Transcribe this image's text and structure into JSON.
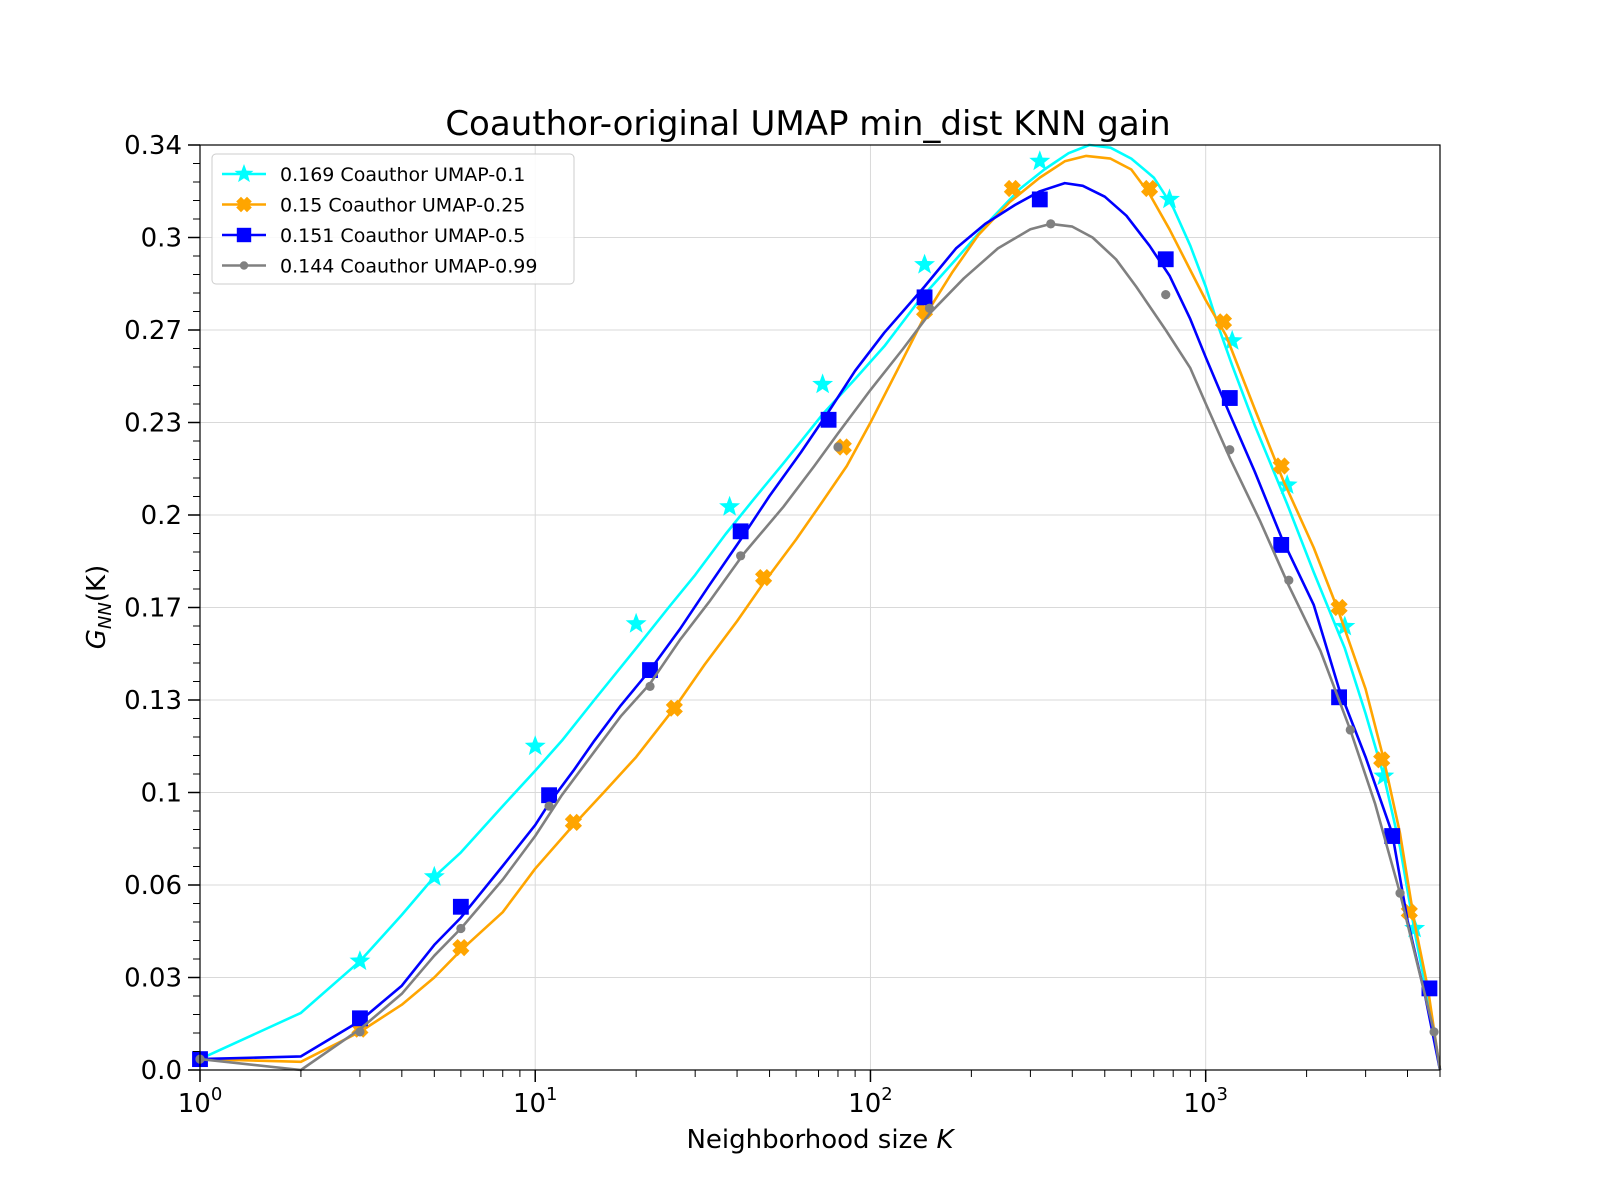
{
  "chart_data": {
    "type": "line",
    "title": "Coauthor-original UMAP min_dist KNN gain",
    "xlabel_text": "Neighborhood size ",
    "xlabel_var": "K",
    "ylabel": {
      "main": "G",
      "sub": "NN",
      "rest": "(K)"
    },
    "xscale": "log",
    "xlim": [
      1,
      5000
    ],
    "ylim": [
      0.0,
      0.34
    ],
    "x_ticks": [
      {
        "value": 1,
        "base": "10",
        "exp": "0"
      },
      {
        "value": 10,
        "base": "10",
        "exp": "1"
      },
      {
        "value": 100,
        "base": "10",
        "exp": "2"
      },
      {
        "value": 1000,
        "base": "10",
        "exp": "3"
      }
    ],
    "y_ticks": [
      {
        "value": 0.0,
        "label": "0.0"
      },
      {
        "value": 0.034,
        "label": "0.03"
      },
      {
        "value": 0.068,
        "label": "0.06"
      },
      {
        "value": 0.102,
        "label": "0.1"
      },
      {
        "value": 0.136,
        "label": "0.13"
      },
      {
        "value": 0.17,
        "label": "0.17"
      },
      {
        "value": 0.204,
        "label": "0.2"
      },
      {
        "value": 0.238,
        "label": "0.23"
      },
      {
        "value": 0.272,
        "label": "0.27"
      },
      {
        "value": 0.306,
        "label": "0.3"
      },
      {
        "value": 0.34,
        "label": "0.34"
      }
    ],
    "grid": true,
    "legend_position": "top-left",
    "series": [
      {
        "name": "0.169 Coauthor UMAP-0.1",
        "color": "#00ffff",
        "marker": "star",
        "line": [
          [
            1,
            0.004
          ],
          [
            2,
            0.021
          ],
          [
            3,
            0.04
          ],
          [
            4,
            0.057
          ],
          [
            5,
            0.071
          ],
          [
            6,
            0.08
          ],
          [
            8,
            0.097
          ],
          [
            10,
            0.11
          ],
          [
            12,
            0.121
          ],
          [
            15,
            0.136
          ],
          [
            20,
            0.155
          ],
          [
            25,
            0.17
          ],
          [
            30,
            0.182
          ],
          [
            37,
            0.197
          ],
          [
            45,
            0.21
          ],
          [
            55,
            0.223
          ],
          [
            72,
            0.241
          ],
          [
            90,
            0.254
          ],
          [
            110,
            0.266
          ],
          [
            140,
            0.283
          ],
          [
            180,
            0.298
          ],
          [
            230,
            0.313
          ],
          [
            280,
            0.324
          ],
          [
            330,
            0.331
          ],
          [
            390,
            0.337
          ],
          [
            450,
            0.34
          ],
          [
            520,
            0.339
          ],
          [
            600,
            0.335
          ],
          [
            700,
            0.328
          ],
          [
            800,
            0.317
          ],
          [
            900,
            0.303
          ],
          [
            1000,
            0.288
          ],
          [
            1100,
            0.272
          ],
          [
            1200,
            0.259
          ],
          [
            1400,
            0.237
          ],
          [
            1750,
            0.208
          ],
          [
            2100,
            0.183
          ],
          [
            2600,
            0.155
          ],
          [
            3000,
            0.131
          ],
          [
            3400,
            0.108
          ],
          [
            3800,
            0.082
          ],
          [
            4200,
            0.051
          ],
          [
            4600,
            0.026
          ],
          [
            5000,
            0.0
          ]
        ],
        "markers": [
          [
            3,
            0.04
          ],
          [
            5,
            0.071
          ],
          [
            10,
            0.119
          ],
          [
            20,
            0.164
          ],
          [
            38,
            0.207
          ],
          [
            72,
            0.252
          ],
          [
            145,
            0.296
          ],
          [
            320,
            0.334
          ],
          [
            780,
            0.32
          ],
          [
            1200,
            0.268
          ],
          [
            1750,
            0.215
          ],
          [
            2600,
            0.163
          ],
          [
            3400,
            0.108
          ],
          [
            4200,
            0.052
          ]
        ]
      },
      {
        "name": "0.15 Coauthor UMAP-0.25",
        "color": "#ffa500",
        "marker": "x",
        "line": [
          [
            1,
            0.004
          ],
          [
            2,
            0.003
          ],
          [
            3,
            0.014
          ],
          [
            4,
            0.024
          ],
          [
            5,
            0.034
          ],
          [
            6,
            0.044
          ],
          [
            8,
            0.058
          ],
          [
            10,
            0.074
          ],
          [
            13,
            0.09
          ],
          [
            16,
            0.102
          ],
          [
            20,
            0.115
          ],
          [
            26,
            0.133
          ],
          [
            32,
            0.149
          ],
          [
            40,
            0.165
          ],
          [
            48,
            0.179
          ],
          [
            60,
            0.195
          ],
          [
            72,
            0.209
          ],
          [
            85,
            0.222
          ],
          [
            100,
            0.238
          ],
          [
            120,
            0.257
          ],
          [
            145,
            0.277
          ],
          [
            175,
            0.293
          ],
          [
            210,
            0.307
          ],
          [
            260,
            0.319
          ],
          [
            320,
            0.328
          ],
          [
            380,
            0.334
          ],
          [
            440,
            0.336
          ],
          [
            520,
            0.335
          ],
          [
            600,
            0.331
          ],
          [
            680,
            0.322
          ],
          [
            780,
            0.309
          ],
          [
            900,
            0.294
          ],
          [
            1000,
            0.283
          ],
          [
            1150,
            0.27
          ],
          [
            1400,
            0.243
          ],
          [
            1700,
            0.217
          ],
          [
            2100,
            0.192
          ],
          [
            2500,
            0.168
          ],
          [
            3000,
            0.14
          ],
          [
            3400,
            0.114
          ],
          [
            3800,
            0.087
          ],
          [
            4200,
            0.054
          ],
          [
            4600,
            0.03
          ],
          [
            5000,
            0.0
          ]
        ],
        "markers": [
          [
            3,
            0.015
          ],
          [
            6,
            0.045
          ],
          [
            13,
            0.091
          ],
          [
            26,
            0.133
          ],
          [
            48,
            0.181
          ],
          [
            83,
            0.229
          ],
          [
            145,
            0.279
          ],
          [
            265,
            0.324
          ],
          [
            680,
            0.324
          ],
          [
            1130,
            0.275
          ],
          [
            1680,
            0.222
          ],
          [
            2500,
            0.17
          ],
          [
            3350,
            0.114
          ],
          [
            4050,
            0.058
          ]
        ]
      },
      {
        "name": "0.151 Coauthor UMAP-0.5",
        "color": "#0000ff",
        "marker": "square",
        "line": [
          [
            1,
            0.004
          ],
          [
            2,
            0.005
          ],
          [
            3,
            0.018
          ],
          [
            4,
            0.031
          ],
          [
            5,
            0.046
          ],
          [
            6,
            0.056
          ],
          [
            8,
            0.075
          ],
          [
            10,
            0.09
          ],
          [
            11,
            0.098
          ],
          [
            13,
            0.11
          ],
          [
            15,
            0.121
          ],
          [
            18,
            0.134
          ],
          [
            22,
            0.147
          ],
          [
            27,
            0.162
          ],
          [
            33,
            0.178
          ],
          [
            41,
            0.195
          ],
          [
            50,
            0.211
          ],
          [
            62,
            0.227
          ],
          [
            75,
            0.242
          ],
          [
            90,
            0.257
          ],
          [
            110,
            0.271
          ],
          [
            145,
            0.288
          ],
          [
            180,
            0.302
          ],
          [
            220,
            0.311
          ],
          [
            270,
            0.318
          ],
          [
            320,
            0.323
          ],
          [
            380,
            0.326
          ],
          [
            430,
            0.325
          ],
          [
            500,
            0.321
          ],
          [
            580,
            0.314
          ],
          [
            680,
            0.303
          ],
          [
            780,
            0.292
          ],
          [
            900,
            0.276
          ],
          [
            1000,
            0.262
          ],
          [
            1180,
            0.241
          ],
          [
            1400,
            0.22
          ],
          [
            1680,
            0.196
          ],
          [
            2100,
            0.171
          ],
          [
            2500,
            0.14
          ],
          [
            3000,
            0.115
          ],
          [
            3600,
            0.087
          ],
          [
            4000,
            0.055
          ],
          [
            4500,
            0.028
          ],
          [
            5000,
            0.0
          ]
        ],
        "markers": [
          [
            1,
            0.004
          ],
          [
            3,
            0.019
          ],
          [
            6,
            0.06
          ],
          [
            11,
            0.101
          ],
          [
            22,
            0.147
          ],
          [
            41,
            0.198
          ],
          [
            75,
            0.239
          ],
          [
            145,
            0.284
          ],
          [
            320,
            0.32
          ],
          [
            760,
            0.298
          ],
          [
            1180,
            0.247
          ],
          [
            1680,
            0.193
          ],
          [
            2500,
            0.137
          ],
          [
            3600,
            0.086
          ],
          [
            4650,
            0.03
          ]
        ]
      },
      {
        "name": "0.144 Coauthor UMAP-0.99",
        "color": "#808080",
        "marker": "dot",
        "line": [
          [
            1,
            0.004
          ],
          [
            2,
            0.0
          ],
          [
            3,
            0.015
          ],
          [
            4,
            0.028
          ],
          [
            5,
            0.042
          ],
          [
            6,
            0.052
          ],
          [
            8,
            0.07
          ],
          [
            10,
            0.086
          ],
          [
            12,
            0.101
          ],
          [
            15,
            0.117
          ],
          [
            18,
            0.13
          ],
          [
            22,
            0.142
          ],
          [
            27,
            0.158
          ],
          [
            33,
            0.172
          ],
          [
            42,
            0.19
          ],
          [
            55,
            0.207
          ],
          [
            68,
            0.222
          ],
          [
            80,
            0.234
          ],
          [
            100,
            0.25
          ],
          [
            125,
            0.265
          ],
          [
            150,
            0.278
          ],
          [
            190,
            0.291
          ],
          [
            240,
            0.302
          ],
          [
            300,
            0.309
          ],
          [
            345,
            0.311
          ],
          [
            400,
            0.31
          ],
          [
            460,
            0.306
          ],
          [
            540,
            0.298
          ],
          [
            620,
            0.288
          ],
          [
            760,
            0.272
          ],
          [
            900,
            0.258
          ],
          [
            1000,
            0.245
          ],
          [
            1180,
            0.225
          ],
          [
            1450,
            0.202
          ],
          [
            1770,
            0.178
          ],
          [
            2200,
            0.154
          ],
          [
            2700,
            0.125
          ],
          [
            3200,
            0.098
          ],
          [
            3800,
            0.065
          ],
          [
            4300,
            0.038
          ],
          [
            4800,
            0.014
          ],
          [
            5000,
            0.0
          ]
        ],
        "markers": [
          [
            1,
            0.004
          ],
          [
            3,
            0.014
          ],
          [
            6,
            0.052
          ],
          [
            11,
            0.097
          ],
          [
            22,
            0.141
          ],
          [
            41,
            0.189
          ],
          [
            80,
            0.229
          ],
          [
            150,
            0.28
          ],
          [
            345,
            0.311
          ],
          [
            760,
            0.285
          ],
          [
            1180,
            0.228
          ],
          [
            1770,
            0.18
          ],
          [
            2700,
            0.125
          ],
          [
            3800,
            0.065
          ],
          [
            4800,
            0.014
          ]
        ]
      }
    ]
  }
}
